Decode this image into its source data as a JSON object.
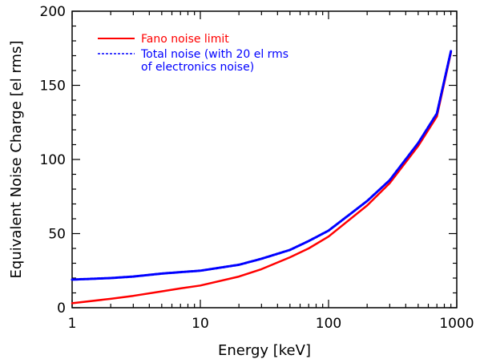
{
  "chart_data": {
    "type": "line",
    "xlabel": "Energy [keV]",
    "ylabel": "Equivalent Noise Charge [el rms]",
    "x_scale": "log",
    "xlim": [
      1,
      1000
    ],
    "ylim": [
      0,
      200
    ],
    "x_ticks": [
      1,
      10,
      100,
      1000
    ],
    "x_tick_labels": [
      "1",
      "10",
      "100",
      "1000"
    ],
    "y_ticks": [
      0,
      50,
      100,
      150,
      200
    ],
    "y_tick_labels": [
      "0",
      "50",
      "100",
      "150",
      "200"
    ],
    "grid": false,
    "legend_position": "top-left",
    "series": [
      {
        "name": "Fano noise limit",
        "color": "#ff0000",
        "line_style": "solid",
        "x": [
          1,
          2,
          3,
          5,
          7,
          10,
          20,
          30,
          50,
          70,
          100,
          200,
          300,
          500,
          700,
          900
        ],
        "y": [
          3,
          6,
          8,
          11,
          13,
          15,
          21,
          26,
          34,
          40,
          48,
          69,
          84,
          109,
          129,
          172
        ]
      },
      {
        "name": "Total noise (with 20 el rms",
        "name_line2": "of electronics noise)",
        "color": "#0000ff",
        "line_style": "dashed",
        "x": [
          1,
          2,
          3,
          5,
          7,
          10,
          20,
          30,
          50,
          70,
          100,
          200,
          300,
          500,
          700,
          900
        ],
        "y": [
          19,
          20,
          21,
          23,
          24,
          25,
          29,
          33,
          39,
          45,
          52,
          72,
          86,
          111,
          131,
          173
        ]
      }
    ]
  }
}
